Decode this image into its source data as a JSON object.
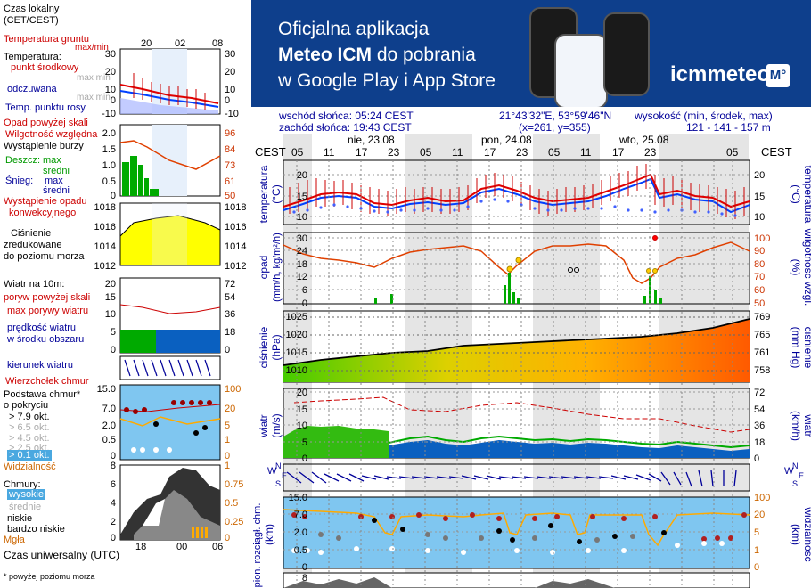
{
  "legend": {
    "time_local": "Czas lokalny",
    "time_local_sub": "(CET/CEST)",
    "time_utc": "Czas uniwersalny (UTC)",
    "soil_temp": "Temperatura gruntu",
    "soil_temp_sub": "max/min",
    "temperature": "Temperatura:",
    "temp_center": "punkt środkowy",
    "temp_max_min": "max min",
    "feels_like": "odczuwana",
    "feels_max_min": "max min",
    "dew_point": "Temp. punktu rosy",
    "precip_over": "Opad powyżej skali",
    "humidity": "Wilgotność względna",
    "storm": "Wystąpienie burzy",
    "rain": "Deszcz:",
    "rain_max": "max",
    "rain_mean": "średni",
    "snow": "Śnieg:",
    "snow_max": "max",
    "snow_mean": "średni",
    "conv_precip": "Wystąpienie opadu",
    "conv_precip2": "konwekcyjnego",
    "pressure": "Ciśnienie",
    "pressure2": "zredukowane",
    "pressure3": "do poziomu morza",
    "wind": "Wiatr na 10m:",
    "gust_over": "poryw powyżej skali",
    "gust_max": "max porywy wiatru",
    "wind_speed": "prędkość wiatru",
    "wind_speed2": "w środku obszaru",
    "wind_dir": "kierunek wiatru",
    "cloud_top": "Wierzchołek chmur",
    "cloud_base": "Podstawa chmur*",
    "cloud_base2": "o pokryciu",
    "okt_79": "> 7.9 okt.",
    "okt_65": "> 6.5 okt.",
    "okt_45": "> 4.5 okt.",
    "okt_25": "> 2.5 okt.",
    "okt_01": "> 0.1 okt.",
    "visibility": "Widzialność",
    "clouds": "Chmury:",
    "clouds_high": "wysokie",
    "clouds_mid": "średnie",
    "clouds_low": "niskie",
    "clouds_vlow": "bardzo niskie",
    "fog": "Mgła",
    "note": "* powyżej poziomu morza",
    "top_ticks": [
      "20",
      "02",
      "08"
    ],
    "bottom_ticks": [
      "18",
      "00",
      "06"
    ],
    "temp_ticks": [
      "30",
      "20",
      "10",
      "0",
      "-10"
    ],
    "precip_ticks": [
      "2.0",
      "1.5",
      "1.0",
      "0.5",
      "0"
    ],
    "hum_ticks": [
      "96",
      "84",
      "73",
      "61",
      "50"
    ],
    "press_ticks": [
      "1018",
      "1016",
      "1014",
      "1012"
    ],
    "wind_ticks": [
      "20",
      "15",
      "10",
      "5",
      "0"
    ],
    "wind_ticks_r": [
      "72",
      "54",
      "36",
      "18",
      "0"
    ],
    "cloud_ticks": [
      "15.0",
      "7.0",
      "2.0",
      "0.5",
      "0"
    ],
    "vis_ticks": [
      "100",
      "20",
      "5",
      "1",
      "0"
    ],
    "cover_ticks": [
      "8",
      "6",
      "4",
      "2",
      "0"
    ],
    "cover_ticks_r": [
      "1",
      "0.75",
      "0.5",
      "0.25",
      "0"
    ]
  },
  "banner": {
    "line1": "Oficjalna aplikacja",
    "line2a": "Meteo ICM",
    "line2b": " do pobrania",
    "line3": "w Google Play i App Store",
    "logo": "icmmeteo",
    "logo_box": "M°"
  },
  "info": {
    "sunrise": "wschód słońca: 05:24 CEST",
    "sunset": "zachód słońca: 19:43 CEST",
    "coords": "21°43'32\"E, 53°59'46\"N",
    "grid": "(x=261,  y=355)",
    "elevation_label": "wysokość (min, środek, max)",
    "elevation": "121 - 141 - 157 m"
  },
  "meteogram": {
    "tz_left": "CEST",
    "tz_right": "CEST",
    "days": [
      "nie, 23.08",
      "pon, 24.08",
      "wto, 25.08"
    ],
    "hours": [
      "05",
      "11",
      "17",
      "23",
      "05",
      "11",
      "17",
      "23",
      "05",
      "11",
      "17",
      "23",
      "05"
    ],
    "temp_label": "temperatura",
    "temp_unit": "(°C)",
    "temp_ticks": [
      "20",
      "15",
      "10"
    ],
    "precip_label": "opad",
    "precip_unit": "(mm/h, kg/m²/h)",
    "precip_ticks": [
      "30",
      "24",
      "18",
      "12",
      "6",
      "0"
    ],
    "hum_label": "wilgotność wzgl.",
    "hum_unit": "(%)",
    "hum_ticks": [
      "100",
      "90",
      "80",
      "70",
      "60",
      "50"
    ],
    "press_label": "ciśnienie",
    "press_unit": "(hPa)",
    "press_ticks": [
      "1025",
      "1020",
      "1015",
      "1010"
    ],
    "press_label_r": "ciśnienie",
    "press_unit_r": "(mm Hg)",
    "press_ticks_r": [
      "769",
      "765",
      "761",
      "758"
    ],
    "wind_label": "wiatr",
    "wind_unit": "(m/s)",
    "wind_ticks": [
      "20",
      "15",
      "10",
      "5",
      "0"
    ],
    "wind_unit_r": "(km/h)",
    "wind_ticks_r": [
      "72",
      "54",
      "36",
      "18",
      "0"
    ],
    "cloud_label": "pion. rozciągł. chm.",
    "cloud_unit": "(km)",
    "cloud_ticks": [
      "15.0",
      "7.0",
      "2.0",
      "0.5",
      "0"
    ],
    "vis_label": "widzialność",
    "vis_unit": "(km)",
    "vis_ticks": [
      "100",
      "20",
      "5",
      "1",
      "0"
    ],
    "bottom_tick": "8"
  },
  "colors": {
    "banner_bg": "#0e3f8c",
    "temp_line": "#e00000",
    "temp_center": "#0040ff",
    "humidity": "#e04000",
    "pressure_fill_start": "#44cc00",
    "pressure_fill_end": "#ff6600",
    "wind_fill": "#00aa00",
    "sky": "#7fc6f0"
  }
}
